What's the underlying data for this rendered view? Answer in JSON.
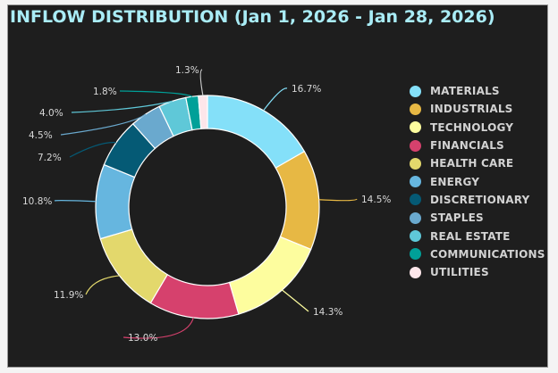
{
  "chart_data": {
    "type": "pie",
    "subtype": "donut",
    "title": "INFLOW DISTRIBUTION (Jan 1, 2026 - Jan 28, 2026)",
    "unit": "%",
    "legend_position": "right",
    "start": "top, clockwise",
    "categories": [
      "MATERIALS",
      "INDUSTRIALS",
      "TECHNOLOGY",
      "FINANCIALS",
      "HEALTH CARE",
      "ENERGY",
      "DISCRETIONARY",
      "STAPLES",
      "REAL ESTATE",
      "COMMUNICATIONS",
      "UTILITIES"
    ],
    "values": [
      16.7,
      14.5,
      14.3,
      13.0,
      11.9,
      10.8,
      7.2,
      4.5,
      4.0,
      1.8,
      1.3
    ],
    "labels": [
      "16.7%",
      "14.5%",
      "14.3%",
      "13.0%",
      "11.9%",
      "10.8%",
      "7.2%",
      "4.5%",
      "4.0%",
      "1.8%",
      "1.3%"
    ],
    "colors": [
      "#84e0f9",
      "#e7b844",
      "#fdfd9e",
      "#d6416d",
      "#e3d86c",
      "#66b6df",
      "#055a75",
      "#6aa9ce",
      "#5fc8d8",
      "#00a098",
      "#fde6ea"
    ]
  },
  "colors": {
    "background": "#1e1e1e",
    "title": "#a9ecf6",
    "label": "#d8d8d8"
  }
}
